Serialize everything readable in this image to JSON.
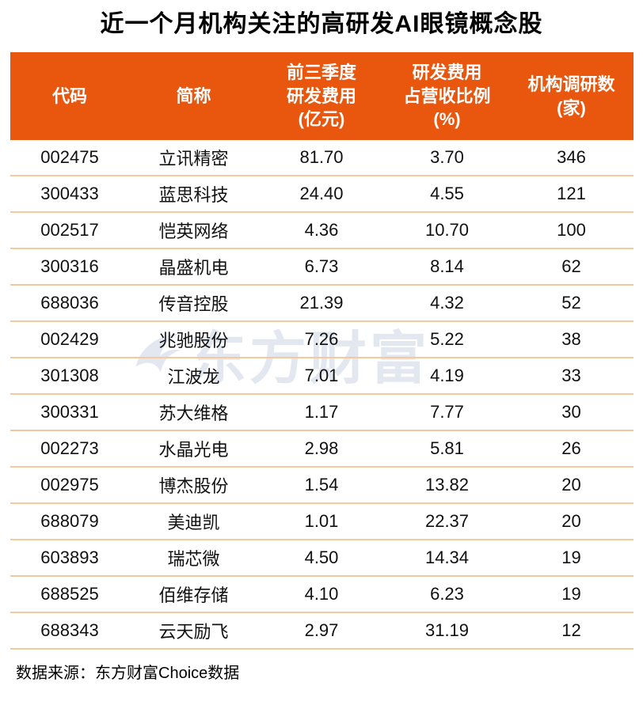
{
  "title": "近一个月机构关注的高研发AI眼镜概念股",
  "watermark": {
    "text": "东方财富",
    "logo_icon": "eastmoney-swallow-logo"
  },
  "source": "数据来源：东方财富Choice数据",
  "colors": {
    "header_bg": "#E9570E",
    "header_text": "#FFFFFF",
    "divider": "#F5C8A0",
    "body_text": "#111111",
    "title_text": "#000000",
    "watermark": "#E3E7EF"
  },
  "table": {
    "headers": [
      "代码",
      "简称",
      "前三季度\n研发费用\n(亿元)",
      "研发费用\n占营收比例\n(%)",
      "机构调研数\n(家)"
    ],
    "rows": [
      [
        "002475",
        "立讯精密",
        "81.70",
        "3.70",
        "346"
      ],
      [
        "300433",
        "蓝思科技",
        "24.40",
        "4.55",
        "121"
      ],
      [
        "002517",
        "恺英网络",
        "4.36",
        "10.70",
        "100"
      ],
      [
        "300316",
        "晶盛机电",
        "6.73",
        "8.14",
        "62"
      ],
      [
        "688036",
        "传音控股",
        "21.39",
        "4.32",
        "52"
      ],
      [
        "002429",
        "兆驰股份",
        "7.26",
        "5.22",
        "38"
      ],
      [
        "301308",
        "江波龙",
        "7.01",
        "4.19",
        "33"
      ],
      [
        "300331",
        "苏大维格",
        "1.17",
        "7.77",
        "30"
      ],
      [
        "002273",
        "水晶光电",
        "2.98",
        "5.81",
        "26"
      ],
      [
        "002975",
        "博杰股份",
        "1.54",
        "13.82",
        "20"
      ],
      [
        "688079",
        "美迪凯",
        "1.01",
        "22.37",
        "20"
      ],
      [
        "603893",
        "瑞芯微",
        "4.50",
        "14.34",
        "19"
      ],
      [
        "688525",
        "佰维存储",
        "4.10",
        "6.23",
        "19"
      ],
      [
        "688343",
        "云天励飞",
        "2.97",
        "31.19",
        "12"
      ]
    ]
  },
  "chart_data": {
    "type": "table",
    "title": "近一个月机构关注的高研发AI眼镜概念股",
    "columns": [
      "代码",
      "简称",
      "前三季度研发费用(亿元)",
      "研发费用占营收比例(%)",
      "机构调研数(家)"
    ],
    "rows": [
      [
        "002475",
        "立讯精密",
        81.7,
        3.7,
        346
      ],
      [
        "300433",
        "蓝思科技",
        24.4,
        4.55,
        121
      ],
      [
        "002517",
        "恺英网络",
        4.36,
        10.7,
        100
      ],
      [
        "300316",
        "晶盛机电",
        6.73,
        8.14,
        62
      ],
      [
        "688036",
        "传音控股",
        21.39,
        4.32,
        52
      ],
      [
        "002429",
        "兆驰股份",
        7.26,
        5.22,
        38
      ],
      [
        "301308",
        "江波龙",
        7.01,
        4.19,
        33
      ],
      [
        "300331",
        "苏大维格",
        1.17,
        7.77,
        30
      ],
      [
        "002273",
        "水晶光电",
        2.98,
        5.81,
        26
      ],
      [
        "002975",
        "博杰股份",
        1.54,
        13.82,
        20
      ],
      [
        "688079",
        "美迪凯",
        1.01,
        22.37,
        20
      ],
      [
        "603893",
        "瑞芯微",
        4.5,
        14.34,
        19
      ],
      [
        "688525",
        "佰维存储",
        4.1,
        6.23,
        19
      ],
      [
        "688343",
        "云天励飞",
        2.97,
        31.19,
        12
      ]
    ],
    "source": "数据来源：东方财富Choice数据"
  }
}
